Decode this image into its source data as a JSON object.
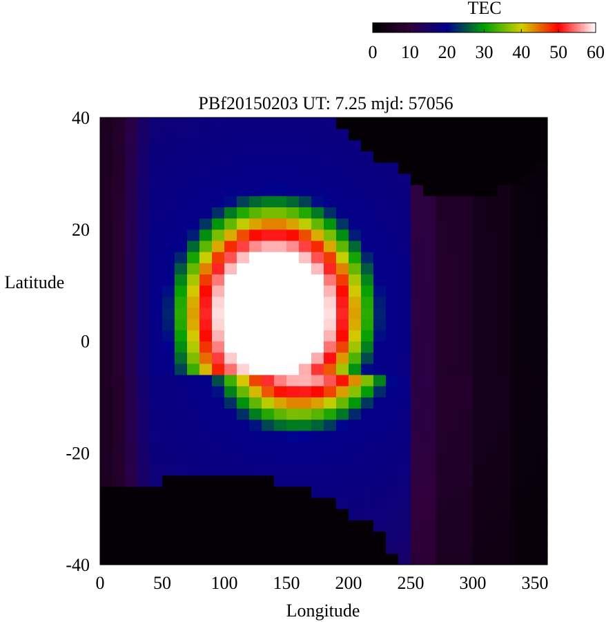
{
  "chart_data": {
    "type": "heatmap",
    "title": "PBf20150203  UT: 7.25  mjd: 57056",
    "xlabel": "Longitude",
    "ylabel": "Latitude",
    "xlim": [
      0,
      360
    ],
    "ylim": [
      -40,
      40
    ],
    "x_ticks": [
      0,
      50,
      100,
      150,
      200,
      250,
      300,
      350
    ],
    "y_ticks": [
      -40,
      -20,
      0,
      20,
      40
    ],
    "grid": false,
    "cell_size": {
      "lon_deg": 10,
      "lat_deg": 2
    },
    "colorbar": {
      "title": "TEC",
      "range": [
        0,
        60
      ],
      "ticks": [
        0,
        10,
        20,
        30,
        40,
        50,
        60
      ],
      "placement": "top-right",
      "colors": [
        "#000000",
        "#30003a",
        "#000090",
        "#00a000",
        "#d0d000",
        "#ff0000",
        "#ffffff"
      ]
    },
    "field_model": {
      "description_units": "TEC",
      "background_by_lon_band": [
        {
          "lon": [
            0,
            10
          ],
          "tec": 7
        },
        {
          "lon": [
            10,
            20
          ],
          "tec": 9
        },
        {
          "lon": [
            20,
            30
          ],
          "tec": 14
        },
        {
          "lon": [
            30,
            40
          ],
          "tec": 18
        },
        {
          "lon": [
            250,
            270
          ],
          "tec": 12
        },
        {
          "lon": [
            270,
            300
          ],
          "tec": 8
        },
        {
          "lon": [
            300,
            330
          ],
          "tec": 5
        },
        {
          "lon": [
            330,
            360
          ],
          "tec": 3
        }
      ],
      "main_anomaly": {
        "center_lon": 140,
        "center_lat": 5,
        "lon_half_width": 95,
        "lat_half_width": 24,
        "peak_tec": 68
      },
      "southern_void_edge": [
        [
          0,
          -26
        ],
        [
          50,
          -25
        ],
        [
          80,
          -23
        ],
        [
          130,
          -24
        ],
        [
          160,
          -26
        ],
        [
          190,
          -29
        ],
        [
          220,
          -33
        ],
        [
          240,
          -40
        ]
      ],
      "northern_void_edge": [
        [
          180,
          40
        ],
        [
          230,
          32
        ],
        [
          260,
          27
        ],
        [
          290,
          25
        ],
        [
          330,
          28
        ],
        [
          360,
          32
        ]
      ]
    }
  }
}
